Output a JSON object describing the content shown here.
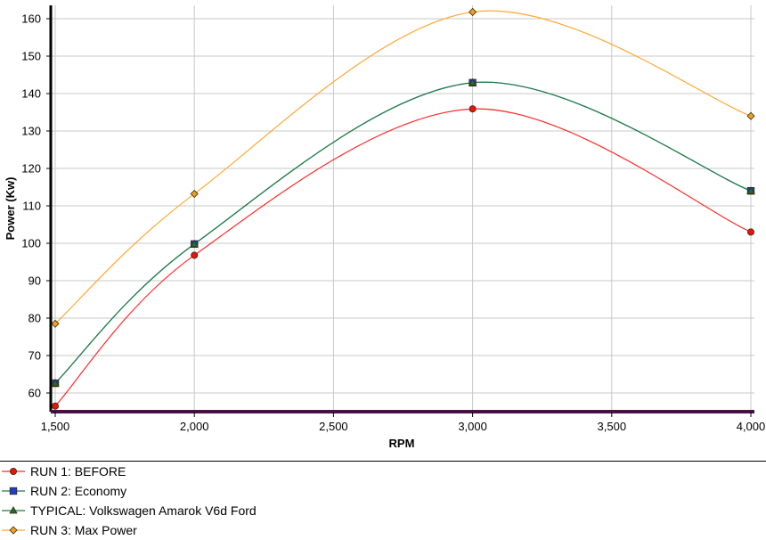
{
  "chart_data": {
    "type": "line",
    "title": "",
    "xlabel": "RPM",
    "ylabel": "Power (Kw)",
    "xlim": [
      1500,
      4000
    ],
    "ylim": [
      55,
      163
    ],
    "x_ticks": [
      1500,
      2000,
      2500,
      3000,
      3500,
      4000
    ],
    "x_tick_labels": [
      "1,500",
      "2,000",
      "2,500",
      "3,000",
      "3,500",
      "4,000"
    ],
    "y_ticks": [
      60,
      70,
      80,
      90,
      100,
      110,
      120,
      130,
      140,
      150,
      160
    ],
    "y_tick_labels": [
      "60",
      "70",
      "80",
      "90",
      "100",
      "110",
      "120",
      "130",
      "140",
      "150",
      "160"
    ],
    "grid": true,
    "legend_position": "bottom",
    "series": [
      {
        "name": "RUN 1: BEFORE",
        "color": "#ff2a2a",
        "marker": "circle",
        "marker_color": "#e8140c",
        "x": [
          1500,
          2000,
          3000,
          4000
        ],
        "values": [
          56.5,
          96.8,
          135.9,
          103
        ]
      },
      {
        "name": "RUN 2: Economy",
        "color": "#1f7a4a",
        "marker": "square",
        "marker_color": "#1a3fd0",
        "x": [
          1500,
          2000,
          3000,
          4000
        ],
        "values": [
          62.6,
          99.8,
          142.9,
          114
        ]
      },
      {
        "name": "TYPICAL: Volkswagen Amarok V6d Ford",
        "color": "#1f7a4a",
        "marker": "triangle",
        "marker_color": "#1f6e2e",
        "x": [
          1500,
          2000,
          3000,
          4000
        ],
        "values": [
          62.6,
          99.8,
          142.9,
          114
        ]
      },
      {
        "name": "RUN 3: Max Power",
        "color": "#ffa733",
        "marker": "diamond",
        "marker_color": "#f0a020",
        "x": [
          1500,
          2000,
          3000,
          4000
        ],
        "values": [
          78.5,
          113.2,
          161.8,
          134
        ]
      }
    ]
  }
}
